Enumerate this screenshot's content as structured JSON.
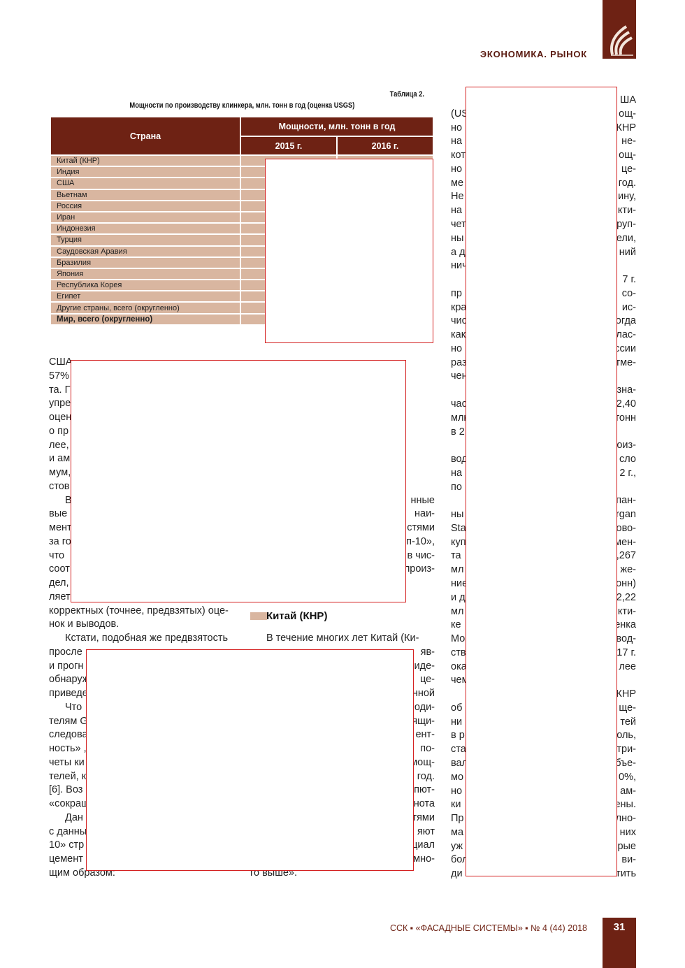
{
  "header": {
    "section": "ЭКОНОМИКА. РЫНОК",
    "logo_icon": "stylized-leaf-logo-icon"
  },
  "table": {
    "caption": "Таблица 2.",
    "title": "Мощности по производству клинкера, млн. тонн в год (оценка USGS)",
    "col_country": "Страна",
    "col_group": "Мощности, млн. тонн в год",
    "years": [
      "2015 г.",
      "2016 г."
    ],
    "rows": [
      "Китай (КНР)",
      "Индия",
      "США",
      "Вьетнам",
      "Россия",
      "Иран",
      "Индонезия",
      "Турция",
      "Саудовская Аравия",
      "Бразилия",
      "Япония",
      "Республика Корея",
      "Египет",
      "Другие страны, всего (округленно)"
    ],
    "total": "Мир, всего (округленно)"
  },
  "left_col": [
    "США",
    "57%",
    "та. Г",
    "упре",
    "оцен",
    "о пр",
    "лее,",
    "и ам",
    "мум,",
    "стов",
    "В",
    "вые",
    "мент",
    "за го",
    "что",
    "соот",
    "дел,",
    "ляет",
    "корректных (точнее, предвзятых) оце-",
    "нок и выводов.",
    "Кстати, подобная же предвзятость",
    "просле",
    "и прогн",
    "обнаруж",
    "приведе",
    "Что",
    "телям G",
    "следова",
    "ность» ,",
    "четы ки",
    "телей, к",
    "[6]. Воз",
    "«сокращ",
    "Дан",
    "с данны",
    "10» стр",
    "цемент",
    "щим образом:"
  ],
  "mid_col_right": [
    "",
    "",
    "",
    "",
    "",
    "",
    "",
    "",
    "",
    "",
    "нные",
    "наи-",
    "стями",
    "п-10»,",
    "в чис-",
    "произ-",
    "",
    "",
    "",
    "",
    "В течение многих лет Китай (Ки-",
    "яв-",
    "иде-",
    "це-",
    "нной",
    "оди-",
    "ящи-",
    "ент-",
    "по-",
    "мощ-",
    "год.",
    "пют-",
    "нота",
    "тями",
    "яют",
    "циал",
    "мно-",
    "го выше»."
  ],
  "mid_heading": "Китай (КНР)",
  "right_col": [
    [
      "",
      "ША"
    ],
    [
      "(US",
      "ощ-"
    ],
    [
      "но",
      "КНР"
    ],
    [
      "на",
      "не-"
    ],
    [
      "кот",
      "ощ-"
    ],
    [
      "но",
      "це-"
    ],
    [
      "ме",
      "год."
    ],
    [
      "Не",
      "ину,"
    ],
    [
      "на",
      "кти-"
    ],
    [
      "чет",
      "руп-"
    ],
    [
      "ны",
      "ели,"
    ],
    [
      "а д",
      "ний"
    ],
    [
      "нич",
      ""
    ],
    [
      "",
      "7 г."
    ],
    [
      "пр",
      "со-"
    ],
    [
      "кра",
      "ис-"
    ],
    [
      "чис",
      "огда"
    ],
    [
      "как",
      "лас-"
    ],
    [
      "но",
      "ссии"
    ],
    [
      "раз",
      "тме-"
    ],
    [
      "чен",
      ""
    ],
    [
      "",
      "зна-"
    ],
    [
      "час",
      "2,40"
    ],
    [
      "млн",
      "тонн"
    ],
    [
      "в 2",
      ""
    ],
    [
      "",
      "оиз-"
    ],
    [
      "вод",
      "сло"
    ],
    [
      "на",
      "2 г.,"
    ],
    [
      "по",
      ""
    ],
    [
      "",
      "пан-"
    ],
    [
      "ны",
      "rgan"
    ],
    [
      "Sta",
      "ово-"
    ],
    [
      "куп",
      "мен-"
    ],
    [
      "та",
      ",267"
    ],
    [
      "мл",
      "же-"
    ],
    [
      "ние",
      "онн)"
    ],
    [
      "и д",
      "2,22"
    ],
    [
      "мл",
      "кти-"
    ],
    [
      "ке",
      "енка"
    ],
    [
      "Мо",
      "вод-"
    ],
    [
      "ств",
      "17 г."
    ],
    [
      "ока",
      "лее"
    ],
    [
      "чем",
      ""
    ],
    [
      "",
      "КНР"
    ],
    [
      "об",
      "ще-"
    ],
    [
      "ни",
      "тей"
    ],
    [
      "в р",
      "оль,"
    ],
    [
      "ста",
      "три-"
    ],
    [
      "вал",
      "бъе-"
    ],
    [
      "мо",
      "0%,"
    ],
    [
      "но",
      "ам-"
    ],
    [
      "ки",
      "ены."
    ],
    [
      "Пр",
      "лно-"
    ],
    [
      "ма",
      "них"
    ],
    [
      "уж",
      "рые"
    ],
    [
      "бол",
      "ви-"
    ],
    [
      "ди",
      "тить"
    ]
  ],
  "footer": {
    "text": "ССК ▪ «ФАСАДНЫЕ СИСТЕМЫ» ▪ № 4 (44) 2018",
    "page": "31"
  },
  "colors": {
    "brand": "#6e2214",
    "row_fill": "#d9b6a0",
    "redaction_border": "#d42020"
  }
}
